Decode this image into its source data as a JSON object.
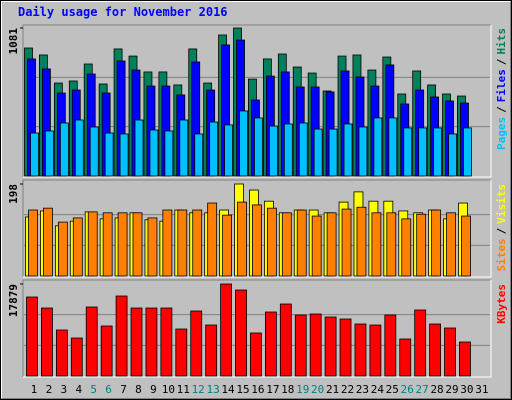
{
  "chart_data": [
    {
      "type": "bar",
      "title": "Daily usage for November 2016",
      "categories": [
        1,
        2,
        3,
        4,
        5,
        6,
        7,
        8,
        9,
        10,
        11,
        12,
        13,
        14,
        15,
        16,
        17,
        18,
        19,
        20,
        21,
        22,
        23,
        24,
        25,
        26,
        27,
        28,
        29,
        30,
        31
      ],
      "highlight_categories": [
        5,
        6,
        12,
        13,
        19,
        20,
        26,
        27
      ],
      "highlight_color": "#008080",
      "legend_separator": "/",
      "ylim": [
        0,
        1081
      ],
      "yticks": [
        1081
      ],
      "series": [
        {
          "name": "Hits",
          "color": "#00805c",
          "values": [
            935,
            884,
            679,
            694,
            818,
            672,
            928,
            876,
            760,
            760,
            665,
            928,
            679,
            1030,
            1081,
            708,
            855,
            891,
            796,
            752,
            621,
            876,
            884,
            774,
            869,
            599,
            767,
            665,
            599,
            584,
            null
          ]
        },
        {
          "name": "Files",
          "color": "#0000ff",
          "values": [
            855,
            782,
            606,
            628,
            745,
            606,
            840,
            774,
            657,
            657,
            592,
            833,
            628,
            957,
            993,
            555,
            730,
            760,
            650,
            650,
            614,
            767,
            723,
            657,
            811,
            526,
            628,
            577,
            548,
            533,
            null
          ]
        },
        {
          "name": "Pages",
          "color": "#00c0ff",
          "values": [
            314,
            329,
            387,
            409,
            358,
            314,
            307,
            409,
            336,
            329,
            409,
            307,
            394,
            373,
            475,
            424,
            365,
            380,
            387,
            343,
            343,
            380,
            358,
            424,
            424,
            351,
            351,
            351,
            307,
            351,
            null
          ]
        }
      ]
    },
    {
      "type": "bar",
      "ylim": [
        0,
        198
      ],
      "yticks": [
        198
      ],
      "series": [
        {
          "name": "Visits",
          "color": "#ffff00",
          "values": [
            127,
            140,
            108,
            118,
            138,
            123,
            125,
            136,
            121,
            118,
            142,
            136,
            136,
            142,
            198,
            185,
            161,
            136,
            142,
            142,
            136,
            159,
            181,
            161,
            161,
            140,
            136,
            142,
            123,
            157,
            null
          ]
        },
        {
          "name": "Sites",
          "color": "#ff8000",
          "values": [
            142,
            146,
            116,
            125,
            138,
            136,
            136,
            136,
            125,
            142,
            142,
            142,
            157,
            131,
            159,
            153,
            146,
            136,
            142,
            129,
            136,
            144,
            148,
            136,
            136,
            123,
            133,
            142,
            136,
            129,
            null
          ]
        }
      ]
    },
    {
      "type": "bar",
      "ylim": [
        0,
        17879
      ],
      "yticks": [
        17879
      ],
      "series": [
        {
          "name": "KBytes",
          "color": "#ff0000",
          "values": [
            15350,
            13212,
            8938,
            7383,
            13407,
            9715,
            15544,
            13212,
            13212,
            13212,
            9132,
            12630,
            9909,
            17879,
            16710,
            8355,
            12435,
            13990,
            11852,
            12047,
            11464,
            11075,
            10104,
            9909,
            11852,
            7189,
            12824,
            10104,
            9326,
            6606,
            null
          ]
        }
      ]
    }
  ]
}
